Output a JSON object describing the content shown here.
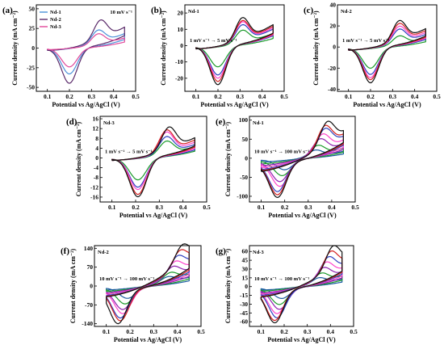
{
  "chart_data": [
    {
      "panel": "(a)",
      "type": "line",
      "xlabel": "Potential vs Ag/AgCl (V)",
      "ylabel": "Current density (mA cm⁻²)",
      "xlim": [
        0.05,
        0.5
      ],
      "ylim": [
        -55,
        55
      ],
      "xticks": [
        0.1,
        0.2,
        0.3,
        0.4,
        0.5
      ],
      "yticks": [
        -50,
        -25,
        0,
        25,
        50
      ],
      "annotation": "10 mV s⁻¹",
      "legend": "top-left",
      "series": [
        {
          "name": "Nd-1",
          "color": "#4a90d9",
          "scan_rate": 10,
          "E_start": 0.1,
          "E_end": 0.45,
          "E_oxidation": 0.33,
          "E_reduction": 0.2,
          "I_oxidation_peak": 27,
          "I_reduction_peak": -33,
          "I_upper_end": 20,
          "I_lower_end": -3
        },
        {
          "name": "Nd-2",
          "color": "#5a2a6a",
          "scan_rate": 10,
          "E_start": 0.1,
          "E_end": 0.45,
          "E_oxidation": 0.34,
          "E_reduction": 0.2,
          "I_oxidation_peak": 40,
          "I_reduction_peak": -45,
          "I_upper_end": 29,
          "I_lower_end": -3
        },
        {
          "name": "Nd-3",
          "color": "#e0489a",
          "scan_rate": 10,
          "E_start": 0.1,
          "E_end": 0.45,
          "E_oxidation": 0.33,
          "E_reduction": 0.2,
          "I_oxidation_peak": 21,
          "I_reduction_peak": -24,
          "I_upper_end": 14,
          "I_lower_end": -2
        }
      ]
    },
    {
      "panel": "(b)",
      "type": "line",
      "title": "Nd-1",
      "xlabel": "Potential vs Ag/AgCl (V)",
      "ylabel": "Current density (mA cm⁻²)",
      "xlim": [
        0.05,
        0.5
      ],
      "ylim": [
        -28,
        25
      ],
      "xticks": [
        0.1,
        0.2,
        0.3,
        0.4,
        0.5
      ],
      "yticks": [
        -20,
        -10,
        0,
        10,
        20
      ],
      "annotation": "1 mV s⁻¹ → 5 mV s⁻¹",
      "series": [
        {
          "color": "#1a9a2a",
          "scan_rate": 1,
          "E_start": 0.1,
          "E_end": 0.45,
          "E_oxidation": 0.31,
          "E_reduction": 0.2,
          "I_oxidation_peak": 12,
          "I_reduction_peak": -13,
          "I_upper_end": 8,
          "I_lower_end": -2
        },
        {
          "color": "#3040c0",
          "scan_rate": 2,
          "E_start": 0.1,
          "E_end": 0.45,
          "E_oxidation": 0.31,
          "E_reduction": 0.2,
          "I_oxidation_peak": 16,
          "I_reduction_peak": -18,
          "I_upper_end": 11,
          "I_lower_end": -2
        },
        {
          "color": "#ff44cc",
          "scan_rate": 3,
          "E_start": 0.1,
          "E_end": 0.45,
          "E_oxidation": 0.31,
          "E_reduction": 0.2,
          "I_oxidation_peak": 18,
          "I_reduction_peak": -20,
          "I_upper_end": 12,
          "I_lower_end": -2
        },
        {
          "color": "#d42020",
          "scan_rate": 4,
          "E_start": 0.1,
          "E_end": 0.45,
          "E_oxidation": 0.31,
          "E_reduction": 0.2,
          "I_oxidation_peak": 19,
          "I_reduction_peak": -22,
          "I_upper_end": 13,
          "I_lower_end": -2
        },
        {
          "color": "#111111",
          "scan_rate": 5,
          "E_start": 0.1,
          "E_end": 0.45,
          "E_oxidation": 0.31,
          "E_reduction": 0.2,
          "I_oxidation_peak": 21,
          "I_reduction_peak": -24,
          "I_upper_end": 14,
          "I_lower_end": -2
        }
      ]
    },
    {
      "panel": "(c)",
      "type": "line",
      "title": "Nd-2",
      "xlabel": "Potential vs Ag/AgCl (V)",
      "ylabel": "Current density (mA cm⁻²)",
      "xlim": [
        0.05,
        0.5
      ],
      "ylim": [
        -42,
        40
      ],
      "xticks": [
        0.1,
        0.2,
        0.3,
        0.4,
        0.5
      ],
      "yticks": [
        -40,
        -20,
        0,
        20,
        40
      ],
      "annotation": "1 mV s⁻¹ → 5 mV s⁻¹",
      "series": [
        {
          "color": "#1a9a2a",
          "scan_rate": 1,
          "E_start": 0.1,
          "E_end": 0.45,
          "E_oxidation": 0.33,
          "E_reduction": 0.2,
          "I_oxidation_peak": 13,
          "I_reduction_peak": -20,
          "I_upper_end": 9,
          "I_lower_end": -3
        },
        {
          "color": "#3040c0",
          "scan_rate": 2,
          "E_start": 0.1,
          "E_end": 0.45,
          "E_oxidation": 0.33,
          "E_reduction": 0.2,
          "I_oxidation_peak": 20,
          "I_reduction_peak": -26,
          "I_upper_end": 13,
          "I_lower_end": -3
        },
        {
          "color": "#ff44cc",
          "scan_rate": 3,
          "E_start": 0.1,
          "E_end": 0.45,
          "E_oxidation": 0.33,
          "E_reduction": 0.2,
          "I_oxidation_peak": 23,
          "I_reduction_peak": -29,
          "I_upper_end": 15,
          "I_lower_end": -3
        },
        {
          "color": "#d42020",
          "scan_rate": 4,
          "E_start": 0.1,
          "E_end": 0.45,
          "E_oxidation": 0.33,
          "E_reduction": 0.2,
          "I_oxidation_peak": 26,
          "I_reduction_peak": -31,
          "I_upper_end": 17,
          "I_lower_end": -3
        },
        {
          "color": "#111111",
          "scan_rate": 5,
          "E_start": 0.1,
          "E_end": 0.45,
          "E_oxidation": 0.33,
          "E_reduction": 0.2,
          "I_oxidation_peak": 29,
          "I_reduction_peak": -34,
          "I_upper_end": 19,
          "I_lower_end": -3
        }
      ]
    },
    {
      "panel": "(d)",
      "type": "line",
      "title": "Nd-3",
      "xlabel": "Potential vs Ag/AgCl (V)",
      "ylabel": "Current density (mA cm⁻²)",
      "xlim": [
        0.05,
        0.5
      ],
      "ylim": [
        -18,
        17
      ],
      "xticks": [
        0.1,
        0.2,
        0.3,
        0.4,
        0.5
      ],
      "yticks": [
        -16,
        -12,
        -8,
        -4,
        0,
        4,
        8,
        12,
        16
      ],
      "annotation": "1 mV s⁻¹ → 5 mV s⁻¹",
      "series": [
        {
          "color": "#1a9a2a",
          "scan_rate": 1,
          "E_start": 0.1,
          "E_end": 0.45,
          "E_oxidation": 0.33,
          "E_reduction": 0.21,
          "I_oxidation_peak": 8,
          "I_reduction_peak": -9,
          "I_upper_end": 5,
          "I_lower_end": -1
        },
        {
          "color": "#3040c0",
          "scan_rate": 2,
          "E_start": 0.1,
          "E_end": 0.45,
          "E_oxidation": 0.33,
          "E_reduction": 0.21,
          "I_oxidation_peak": 10,
          "I_reduction_peak": -12,
          "I_upper_end": 6,
          "I_lower_end": -1
        },
        {
          "color": "#ff44cc",
          "scan_rate": 3,
          "E_start": 0.1,
          "E_end": 0.45,
          "E_oxidation": 0.33,
          "E_reduction": 0.21,
          "I_oxidation_peak": 12,
          "I_reduction_peak": -13,
          "I_upper_end": 7,
          "I_lower_end": -1
        },
        {
          "color": "#d42020",
          "scan_rate": 4,
          "E_start": 0.1,
          "E_end": 0.45,
          "E_oxidation": 0.33,
          "E_reduction": 0.21,
          "I_oxidation_peak": 13,
          "I_reduction_peak": -15,
          "I_upper_end": 8,
          "I_lower_end": -1
        },
        {
          "color": "#111111",
          "scan_rate": 5,
          "E_start": 0.1,
          "E_end": 0.45,
          "E_oxidation": 0.34,
          "E_reduction": 0.21,
          "I_oxidation_peak": 14,
          "I_reduction_peak": -16,
          "I_upper_end": 9,
          "I_lower_end": -1
        }
      ]
    },
    {
      "panel": "(e)",
      "type": "line",
      "title": "Nd-1",
      "xlabel": "Potential vs Ag/AgCl (V)",
      "ylabel": "Current density (mA cm⁻²)",
      "xlim": [
        0.05,
        0.5
      ],
      "ylim": [
        -115,
        110
      ],
      "xticks": [
        0.1,
        0.2,
        0.3,
        0.4,
        0.5
      ],
      "yticks": [
        -100,
        -50,
        0,
        50,
        100
      ],
      "annotation": "10 mV s⁻¹ → 100 mV s⁻¹",
      "series": [
        {
          "color": "#1a5aa0",
          "scan_rate": 10,
          "E_start": 0.1,
          "E_end": 0.45,
          "E_oxidation": 0.33,
          "E_reduction": 0.2,
          "I_oxidation_peak": 28,
          "I_reduction_peak": -30,
          "I_upper_end": 20,
          "I_lower_end": -10
        },
        {
          "color": "#1a9a2a",
          "scan_rate": 20,
          "E_start": 0.1,
          "E_end": 0.45,
          "E_oxidation": 0.34,
          "E_reduction": 0.19,
          "I_oxidation_peak": 42,
          "I_reduction_peak": -45,
          "I_upper_end": 29,
          "I_lower_end": -15
        },
        {
          "color": "#9020b0",
          "scan_rate": 40,
          "E_start": 0.1,
          "E_end": 0.45,
          "E_oxidation": 0.35,
          "E_reduction": 0.18,
          "I_oxidation_peak": 60,
          "I_reduction_peak": -60,
          "I_upper_end": 42,
          "I_lower_end": -20
        },
        {
          "color": "#ff44cc",
          "scan_rate": 60,
          "E_start": 0.1,
          "E_end": 0.45,
          "E_oxidation": 0.36,
          "E_reduction": 0.18,
          "I_oxidation_peak": 72,
          "I_reduction_peak": -72,
          "I_upper_end": 52,
          "I_lower_end": -25
        },
        {
          "color": "#3040c0",
          "scan_rate": 80,
          "E_start": 0.1,
          "E_end": 0.45,
          "E_oxidation": 0.37,
          "E_reduction": 0.17,
          "I_oxidation_peak": 85,
          "I_reduction_peak": -85,
          "I_upper_end": 62,
          "I_lower_end": -30
        },
        {
          "color": "#d42020",
          "scan_rate": 90,
          "E_start": 0.1,
          "E_end": 0.45,
          "E_oxidation": 0.37,
          "E_reduction": 0.17,
          "I_oxidation_peak": 93,
          "I_reduction_peak": -93,
          "I_upper_end": 68,
          "I_lower_end": -33
        },
        {
          "color": "#111111",
          "scan_rate": 100,
          "E_start": 0.1,
          "E_end": 0.45,
          "E_oxidation": 0.38,
          "E_reduction": 0.17,
          "I_oxidation_peak": 100,
          "I_reduction_peak": -100,
          "I_upper_end": 75,
          "I_lower_end": -35
        }
      ]
    },
    {
      "panel": "(f)",
      "type": "line",
      "title": "Nd-2",
      "xlabel": "Potential vs Ag/AgCl (V)",
      "ylabel": "Current density (mA cm⁻²)",
      "xlim": [
        0.05,
        0.5
      ],
      "ylim": [
        -150,
        150
      ],
      "xticks": [
        0.1,
        0.2,
        0.3,
        0.4,
        0.5
      ],
      "yticks": [
        -140,
        -70,
        0,
        70,
        140
      ],
      "annotation": "10 mV s⁻¹ → 100 mV s⁻¹",
      "series": [
        {
          "color": "#1a5aa0",
          "scan_rate": 10,
          "E_start": 0.1,
          "E_end": 0.45,
          "E_oxidation": 0.36,
          "E_reduction": 0.19,
          "I_oxidation_peak": 40,
          "I_reduction_peak": -45,
          "I_upper_end": 35,
          "I_lower_end": -15
        },
        {
          "color": "#1a9a2a",
          "scan_rate": 20,
          "E_start": 0.1,
          "E_end": 0.45,
          "E_oxidation": 0.37,
          "E_reduction": 0.18,
          "I_oxidation_peak": 55,
          "I_reduction_peak": -65,
          "I_upper_end": 48,
          "I_lower_end": -20
        },
        {
          "color": "#9020b0",
          "scan_rate": 40,
          "E_start": 0.1,
          "E_end": 0.45,
          "E_oxidation": 0.38,
          "E_reduction": 0.17,
          "I_oxidation_peak": 75,
          "I_reduction_peak": -85,
          "I_upper_end": 65,
          "I_lower_end": -25
        },
        {
          "color": "#ff44cc",
          "scan_rate": 60,
          "E_start": 0.1,
          "E_end": 0.45,
          "E_oxidation": 0.39,
          "E_reduction": 0.17,
          "I_oxidation_peak": 90,
          "I_reduction_peak": -100,
          "I_upper_end": 80,
          "I_lower_end": -30
        },
        {
          "color": "#3040c0",
          "scan_rate": 80,
          "E_start": 0.1,
          "E_end": 0.45,
          "E_oxidation": 0.4,
          "E_reduction": 0.16,
          "I_oxidation_peak": 105,
          "I_reduction_peak": -115,
          "I_upper_end": 95,
          "I_lower_end": -35
        },
        {
          "color": "#d42020",
          "scan_rate": 90,
          "E_start": 0.1,
          "E_end": 0.45,
          "E_oxidation": 0.41,
          "E_reduction": 0.16,
          "I_oxidation_peak": 118,
          "I_reduction_peak": -125,
          "I_upper_end": 108,
          "I_lower_end": -38
        },
        {
          "color": "#111111",
          "scan_rate": 100,
          "E_start": 0.1,
          "E_end": 0.45,
          "E_oxidation": 0.42,
          "E_reduction": 0.15,
          "I_oxidation_peak": 130,
          "I_reduction_peak": -135,
          "I_upper_end": 120,
          "I_lower_end": -40
        }
      ]
    },
    {
      "panel": "(g)",
      "type": "line",
      "title": "Nd-3",
      "xlabel": "Potential vs Ag/AgCl (V)",
      "ylabel": "Current density (mA cm⁻²)",
      "xlim": [
        0.05,
        0.5
      ],
      "ylim": [
        -68,
        70
      ],
      "xticks": [
        0.1,
        0.2,
        0.3,
        0.4,
        0.5
      ],
      "yticks": [
        -60,
        -45,
        -30,
        -15,
        0,
        15,
        30,
        45,
        60
      ],
      "annotation": "10 mV s⁻¹ → 100 mV s⁻¹",
      "series": [
        {
          "color": "#1a5aa0",
          "scan_rate": 10,
          "E_start": 0.1,
          "E_end": 0.45,
          "E_oxidation": 0.35,
          "E_reduction": 0.19,
          "I_oxidation_peak": 18,
          "I_reduction_peak": -20,
          "I_upper_end": 14,
          "I_lower_end": -6
        },
        {
          "color": "#1a9a2a",
          "scan_rate": 20,
          "E_start": 0.1,
          "E_end": 0.45,
          "E_oxidation": 0.36,
          "E_reduction": 0.18,
          "I_oxidation_peak": 26,
          "I_reduction_peak": -30,
          "I_upper_end": 20,
          "I_lower_end": -8
        },
        {
          "color": "#9020b0",
          "scan_rate": 40,
          "E_start": 0.1,
          "E_end": 0.45,
          "E_oxidation": 0.37,
          "E_reduction": 0.18,
          "I_oxidation_peak": 35,
          "I_reduction_peak": -38,
          "I_upper_end": 27,
          "I_lower_end": -11
        },
        {
          "color": "#ff44cc",
          "scan_rate": 60,
          "E_start": 0.1,
          "E_end": 0.45,
          "E_oxidation": 0.38,
          "E_reduction": 0.17,
          "I_oxidation_peak": 43,
          "I_reduction_peak": -45,
          "I_upper_end": 33,
          "I_lower_end": -13
        },
        {
          "color": "#3040c0",
          "scan_rate": 80,
          "E_start": 0.1,
          "E_end": 0.45,
          "E_oxidation": 0.39,
          "E_reduction": 0.17,
          "I_oxidation_peak": 50,
          "I_reduction_peak": -52,
          "I_upper_end": 39,
          "I_lower_end": -15
        },
        {
          "color": "#d42020",
          "scan_rate": 90,
          "E_start": 0.1,
          "E_end": 0.45,
          "E_oxidation": 0.4,
          "E_reduction": 0.16,
          "I_oxidation_peak": 57,
          "I_reduction_peak": -56,
          "I_upper_end": 44,
          "I_lower_end": -17
        },
        {
          "color": "#111111",
          "scan_rate": 100,
          "E_start": 0.1,
          "E_end": 0.45,
          "E_oxidation": 0.41,
          "E_reduction": 0.16,
          "I_oxidation_peak": 63,
          "I_reduction_peak": -60,
          "I_upper_end": 48,
          "I_lower_end": -18
        }
      ]
    }
  ]
}
